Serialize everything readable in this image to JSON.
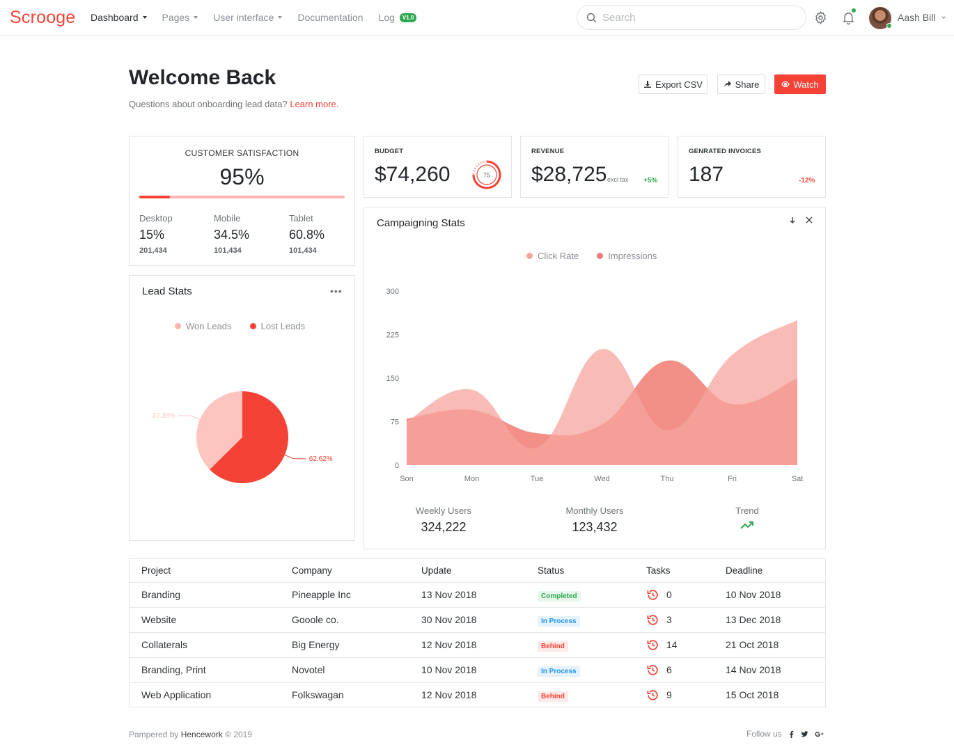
{
  "app": {
    "logo": "Scrooge"
  },
  "nav": [
    {
      "label": "Dashboard",
      "caret": true,
      "active": true
    },
    {
      "label": "Pages",
      "caret": true
    },
    {
      "label": "User interface",
      "caret": true
    },
    {
      "label": "Documentation",
      "caret": false
    },
    {
      "label": "Log",
      "badge": "V1.0"
    }
  ],
  "search": {
    "placeholder": "Search"
  },
  "user": {
    "name": "Aash Bill"
  },
  "header": {
    "title": "Welcome Back",
    "subtitle": "Questions about onboarding lead data?",
    "link": "Learn more.",
    "export_label": "Export CSV",
    "share_label": "Share",
    "watch_label": "Watch"
  },
  "satisfaction": {
    "title": "CUSTOMER SATISFACTION",
    "value": "95%",
    "bar_fraction": 0.15,
    "cols": [
      {
        "label": "Desktop",
        "pct": "15%",
        "num": "201,434"
      },
      {
        "label": "Mobile",
        "pct": "34.5%",
        "num": "101,434"
      },
      {
        "label": "Tablet",
        "pct": "60.8%",
        "num": "101,434"
      }
    ]
  },
  "budget": {
    "title": "BUDGET",
    "value": "$74,260",
    "ring_value": "75"
  },
  "revenue": {
    "title": "REVENUE",
    "value": "$28,725",
    "note": "excl tax",
    "change": "+5%"
  },
  "invoices": {
    "title": "GENRATED INVOICES",
    "value": "187",
    "change": "-12%"
  },
  "lead": {
    "title": "Lead Stats",
    "menu": "•••",
    "legend": [
      {
        "name": "Won Leads",
        "color": "#fbb4ae"
      },
      {
        "name": "Lost Leads",
        "color": "#f44336"
      }
    ],
    "pie": [
      {
        "name": "Won Leads",
        "value": 37.38,
        "label": "37.38%",
        "color": "#fcc5c0"
      },
      {
        "name": "Lost Leads",
        "value": 62.62,
        "label": "62.62%",
        "color": "#f44336"
      }
    ]
  },
  "campaign": {
    "title": "Campaigning Stats",
    "kpis": [
      {
        "label": "Weekly Users",
        "value": "324,222"
      },
      {
        "label": "Monthly Users",
        "value": "123,432"
      },
      {
        "label": "Trend",
        "value": ""
      }
    ]
  },
  "chart_data": {
    "type": "area",
    "categories": [
      "Son",
      "Mon",
      "Tue",
      "Wed",
      "Thu",
      "Fri",
      "Sat"
    ],
    "yticks": [
      0,
      75,
      150,
      225,
      300
    ],
    "ylim": [
      0,
      300
    ],
    "series": [
      {
        "name": "Click Rate",
        "color": "#f7a49e",
        "values": [
          75,
          130,
          30,
          200,
          60,
          190,
          250
        ]
      },
      {
        "name": "Impressions",
        "color": "#f07c72",
        "values": [
          80,
          95,
          55,
          70,
          180,
          105,
          150
        ]
      }
    ],
    "legend_position": "top-center",
    "grid": false
  },
  "table": {
    "headers": [
      "Project",
      "Company",
      "Update",
      "Status",
      "Tasks",
      "Deadline"
    ],
    "rows": [
      {
        "project": "Branding",
        "company": "Pineapple Inc",
        "update": "13 Nov 2018",
        "status": "Completed",
        "status_type": "completed",
        "tasks": "0",
        "deadline": "10 Nov 2018"
      },
      {
        "project": "Website",
        "company": "Gooole co.",
        "update": "30 Nov 2018",
        "status": "In Process",
        "status_type": "inprocess",
        "tasks": "3",
        "deadline": "13 Dec 2018"
      },
      {
        "project": "Collaterals",
        "company": "Big Energy",
        "update": "12 Nov 2018",
        "status": "Behind",
        "status_type": "behind",
        "tasks": "14",
        "deadline": "21 Oct 2018"
      },
      {
        "project": "Branding, Print",
        "company": "Novotel",
        "update": "10 Nov 2018",
        "status": "In Process",
        "status_type": "inprocess",
        "tasks": "6",
        "deadline": "14 Nov 2018"
      },
      {
        "project": "Web Application",
        "company": "Folkswagan",
        "update": "12 Nov 2018",
        "status": "Behind",
        "status_type": "behind",
        "tasks": "9",
        "deadline": "15 Oct 2018"
      }
    ]
  },
  "footer": {
    "text": "Pampered by",
    "brand": "Hencework",
    "copy": "© 2019",
    "follow": "Follow us"
  },
  "colors": {
    "accent": "#f44336",
    "success": "#2fa84f",
    "info": "#2196f3"
  }
}
